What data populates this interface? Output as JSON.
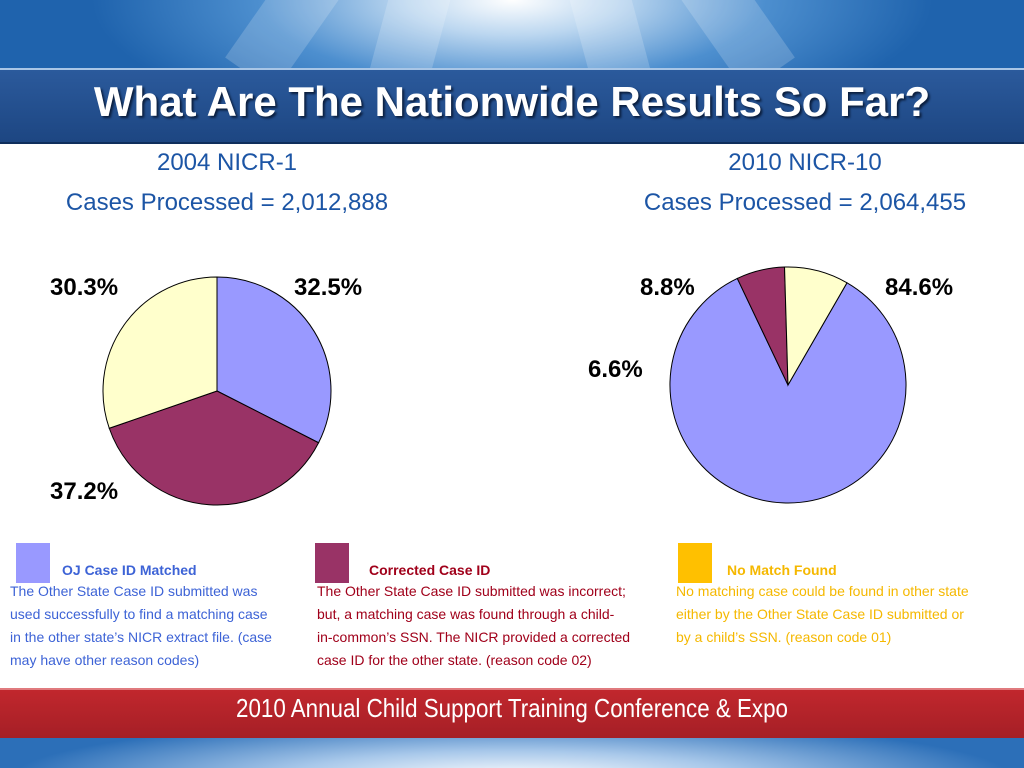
{
  "slide": {
    "title": "What Are The Nationwide Results So Far?",
    "footer": "2010 Annual Child Support Training Conference & Expo"
  },
  "colors": {
    "oj_matched": "#9999ff",
    "corrected": "#993366",
    "no_match_pie": "#ffffcc",
    "no_match_legend": "#ffc000",
    "heading_blue": "#1c55a5",
    "desc_blue": "#3d63d6",
    "desc_red": "#a0001a",
    "desc_gold": "#f5b800"
  },
  "chart_data": [
    {
      "type": "pie",
      "title": "2004 NICR-1",
      "subtitle": "Cases Processed = 2,012,888",
      "slices": [
        {
          "category": "OJ Case ID Matched",
          "value": 32.5,
          "label": "32.5%"
        },
        {
          "category": "Corrected Case ID",
          "value": 37.2,
          "label": "37.2%"
        },
        {
          "category": "No Match Found",
          "value": 30.3,
          "label": "30.3%"
        }
      ]
    },
    {
      "type": "pie",
      "title": "2010 NICR-10",
      "subtitle": "Cases Processed = 2,064,455",
      "slices": [
        {
          "category": "OJ Case ID Matched",
          "value": 84.6,
          "label": "84.6%"
        },
        {
          "category": "Corrected Case ID",
          "value": 6.6,
          "label": "6.6%"
        },
        {
          "category": "No Match Found",
          "value": 8.8,
          "label": "8.8%"
        }
      ]
    }
  ],
  "legend": [
    {
      "title": "OJ Case ID Matched",
      "description_lines": [
        "The Other State Case ID submitted was",
        "used successfully to find a matching case",
        "in the other state’s NICR extract file. (case",
        "may have other reason codes)"
      ]
    },
    {
      "title": "Corrected Case ID",
      "description_lines": [
        "The Other State Case ID submitted was incorrect;",
        "but, a matching case was found through a child-",
        "in-common’s SSN. The NICR provided a corrected",
        "case ID for the other state. (reason code 02)"
      ]
    },
    {
      "title": "No Match Found",
      "description_lines": [
        "No matching case could be found in other state",
        "either by the Other State Case ID submitted or",
        "by a child’s SSN. (reason code 01)"
      ]
    }
  ]
}
